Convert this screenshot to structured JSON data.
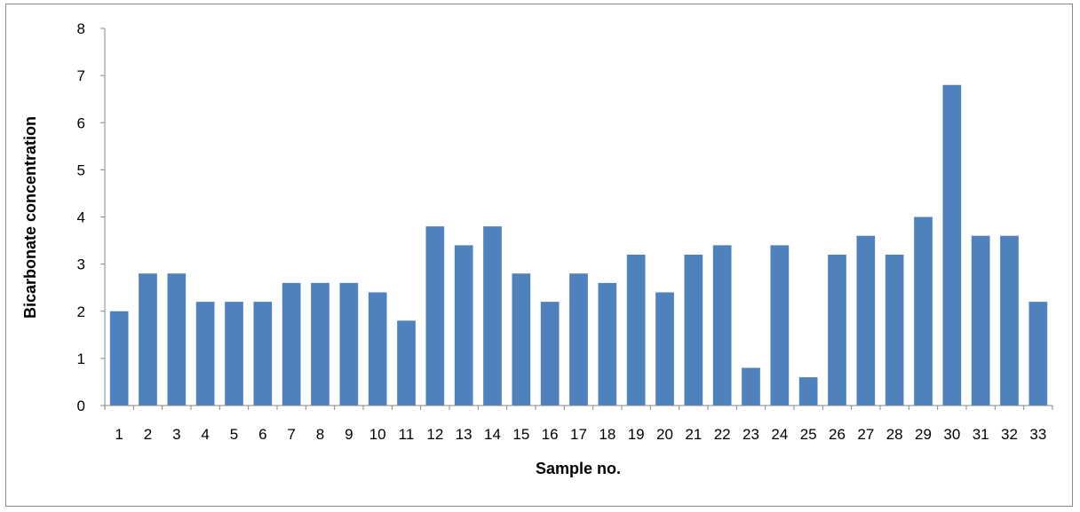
{
  "colors": {
    "bar": "#4f81bd",
    "axis": "#868686"
  },
  "chart_data": {
    "type": "bar",
    "title": "",
    "xlabel": "Sample no.",
    "ylabel": "Bicarbonate concentration",
    "ylim": [
      0,
      8
    ],
    "yticks": [
      "0",
      "1",
      "2",
      "3",
      "4",
      "5",
      "6",
      "7",
      "8"
    ],
    "grid": false,
    "legend": "none",
    "categories": [
      "1",
      "2",
      "3",
      "4",
      "5",
      "6",
      "7",
      "8",
      "9",
      "10",
      "11",
      "12",
      "13",
      "14",
      "15",
      "16",
      "17",
      "18",
      "19",
      "20",
      "21",
      "22",
      "23",
      "24",
      "25",
      "26",
      "27",
      "28",
      "29",
      "30",
      "31",
      "32",
      "33"
    ],
    "values": [
      2.0,
      2.8,
      2.8,
      2.2,
      2.2,
      2.2,
      2.6,
      2.6,
      2.6,
      2.4,
      1.8,
      3.8,
      3.4,
      3.8,
      2.8,
      2.2,
      2.8,
      2.6,
      3.2,
      2.4,
      3.2,
      3.4,
      0.8,
      3.4,
      0.6,
      3.2,
      3.6,
      3.2,
      4.0,
      6.8,
      3.6,
      3.6,
      2.2
    ]
  }
}
